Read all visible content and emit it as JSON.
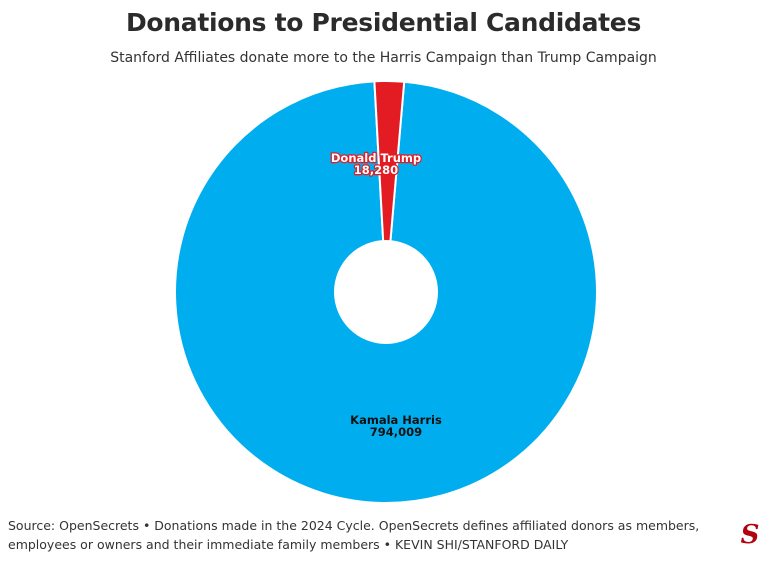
{
  "header": {
    "title": "Donations to Presidential Candidates",
    "subtitle": "Stanford Affiliates donate more to the Harris Campaign than Trump Campaign"
  },
  "chart_data": {
    "type": "pie",
    "title": "Donations to Presidential Candidates",
    "subtitle": "Stanford Affiliates donate more to the Harris Campaign than Trump Campaign",
    "donut": true,
    "slices": [
      {
        "name": "Kamala Harris",
        "value": 794009,
        "label": "794,009",
        "color": "#00aeef"
      },
      {
        "name": "Donald Trump",
        "value": 18280,
        "label": "18,280",
        "color": "#e31b23"
      }
    ]
  },
  "footer": {
    "source": "Source: OpenSecrets • Donations made in the 2024 Cycle. OpenSecrets defines affiliated donors as members, employees or owners and their immediate family members • KEVIN SHI/STANFORD DAILY"
  },
  "logo": {
    "glyph": "S",
    "color": "#b1040e"
  }
}
